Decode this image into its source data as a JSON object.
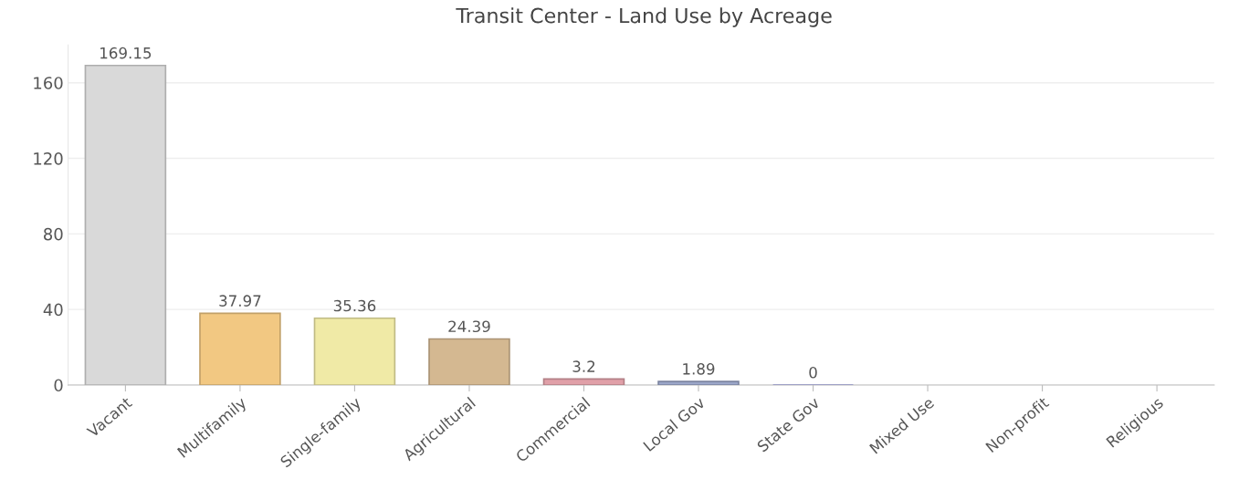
{
  "chart_data": {
    "type": "bar",
    "title": "Transit Center - Land Use by Acreage",
    "categories": [
      "Vacant",
      "Multifamily",
      "Single-family",
      "Agricultural",
      "Commercial",
      "Local Gov",
      "State Gov",
      "Mixed Use",
      "Non-profit",
      "Religious"
    ],
    "values": [
      169.15,
      37.97,
      35.36,
      24.39,
      3.2,
      1.89,
      0,
      null,
      null,
      null
    ],
    "colors": [
      "#d9d9d9",
      "#f2c882",
      "#f0eaa6",
      "#d4b891",
      "#e0a0a8",
      "#9ba6c9",
      "#8a8fc0",
      null,
      null,
      null
    ],
    "ylim": [
      0,
      180
    ],
    "yticks": [
      0,
      40,
      80,
      120,
      160
    ],
    "grid": "y",
    "data_labels": true
  }
}
